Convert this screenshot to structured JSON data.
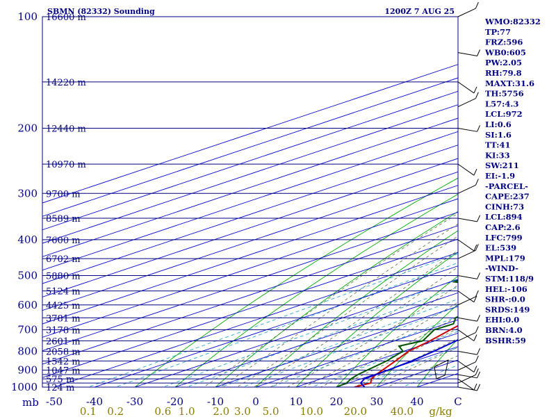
{
  "header": {
    "title": "SBMN (82332) Sounding",
    "time": "1200Z  7 AUG 25"
  },
  "colors": {
    "frame": "#000080",
    "isobar": "#000080",
    "isotherm": "#0000cc",
    "dry_adiabat": "#00aa00",
    "moist_adiabat": "#00aa00",
    "mixing_ratio": "#2aa7c9",
    "temperature": "#cc0000",
    "dewpoint": "#005500",
    "parcel": "#0000cc",
    "text": "#000080",
    "mixing_label": "#8a7a00",
    "hodo_stroke": "#000000"
  },
  "pressure_labels": [
    "100",
    "200",
    "300",
    "400",
    "500",
    "600",
    "700",
    "800",
    "900",
    "1000"
  ],
  "height_labels": [
    "16600 m",
    "14220 m",
    "12440 m",
    "10970 m",
    "9700 m",
    "8589 m",
    "7600 m",
    "6702 m",
    "5880 m",
    "5124 m",
    "4425 m",
    "3781 m",
    "3178 m",
    "2601 m",
    "2058 m",
    "1542 m",
    "1047 m",
    "575 m",
    "124 m"
  ],
  "mb_label": "mb",
  "temperature_labels": [
    "-50",
    "-40",
    "-30",
    "-20",
    "-10",
    "0",
    "10",
    "20",
    "30",
    "40",
    "C"
  ],
  "mixing_ratio_labels": [
    "0.1",
    "0.2",
    "0.6",
    "1.0",
    "2.0",
    "3.0",
    "5.0",
    "10.0",
    "20.0",
    "40.0",
    "g/kg"
  ],
  "indices": [
    "WMO:82332",
    "TP:77",
    "FRZ:596",
    "WB0:605",
    "PW:2.05",
    "RH:79.8",
    "MAXT:31.6",
    "TH:5756",
    "L57:4.3",
    "LCL:972",
    "LI:0.6",
    "SI:1.6",
    "TT:41",
    "KI:33",
    "SW:211",
    "EI:-1.9",
    "-PARCEL-",
    "CAPE:237",
    "CINH:73",
    "LCL:894",
    "CAP:2.6",
    "LFC:799",
    "EL:539",
    "MPL:179",
    "-WIND-",
    "STM:118/9",
    "HEL:-106",
    "SHR-:0.0",
    "SRDS:149",
    "EHI:0.0",
    "BRN:4.0",
    "BSHR:59"
  ],
  "chart_data": {
    "type": "line",
    "title": "SBMN (82332) Sounding",
    "subtitle": "1200Z  7 AUG 25",
    "diagram": "skew-T log-P",
    "xlabel": "C",
    "ylabel": "mb",
    "ylim": [
      1000,
      100
    ],
    "xlim": [
      -50,
      40
    ],
    "series": [
      {
        "pressure": [
          1000,
          975,
          950,
          925,
          900,
          850,
          800,
          750,
          700,
          650,
          600,
          550,
          525,
          500,
          450,
          400,
          350,
          300,
          250,
          200,
          170,
          150,
          125,
          100
        ],
        "values": [
          24.5,
          25.5,
          22.5,
          20.5,
          18.8,
          15.2,
          11.2,
          8.8,
          5.6,
          2.4,
          -1.0,
          -3.2,
          -3.5,
          -5.5,
          -11.5,
          -19.0,
          -28.0,
          -38.0,
          -48.5,
          -60.0,
          -67.0,
          -70.5,
          -74.0,
          -77.0
        ]
      },
      {
        "pressure": [
          1000,
          975,
          950,
          925,
          900,
          850,
          800,
          775,
          750,
          700,
          675,
          650,
          600,
          550,
          540,
          520,
          500,
          480,
          460,
          440,
          420,
          400,
          380,
          360,
          340,
          320,
          300,
          290,
          270,
          250,
          240,
          230,
          220,
          210,
          200,
          190,
          175,
          160,
          145,
          130,
          115,
          100
        ],
        "values": [
          20.0,
          19.5,
          17.5,
          16.0,
          15.0,
          13.0,
          9.8,
          5.0,
          7.0,
          1.6,
          2.0,
          -2.0,
          -5.0,
          -10.0,
          -13.0,
          -29.0,
          -30.0,
          -25.0,
          -20.0,
          -27.0,
          -24.0,
          -31.0,
          -33.0,
          -47.0,
          -40.0,
          -51.0,
          -54.0,
          -46.0,
          -66.0,
          -64.0,
          -57.0,
          -66.0,
          -60.0,
          -66.0,
          -68.0,
          -64.0,
          -73.0,
          -80.0,
          -73.0,
          -76.0,
          -76.0,
          -80.0
        ]
      },
      {
        "pressure": [
          1000,
          975,
          950,
          925,
          900,
          850,
          800,
          750,
          700,
          650,
          600,
          550,
          500,
          450,
          400,
          350,
          300,
          250,
          200,
          175,
          150,
          125,
          100
        ],
        "values": [
          27.0,
          23.0,
          20.8,
          20.5,
          20.2,
          19.2,
          17.5,
          15.3,
          12.3,
          8.8,
          4.6,
          -0.8,
          -5.8,
          -12.0,
          -19.0,
          -27.5,
          -38.0,
          -51.0,
          -65.0,
          -73.0,
          -81.0,
          -89.0,
          -97.0
        ]
      }
    ],
    "mixing_ratio_axis": [
      0.1,
      0.2,
      0.6,
      1.0,
      2.0,
      3.0,
      5.0,
      10.0,
      20.0,
      40.0
    ],
    "wind_barbs": "right edge, 100 to 1000 mb",
    "grid": true,
    "legend": "none"
  }
}
